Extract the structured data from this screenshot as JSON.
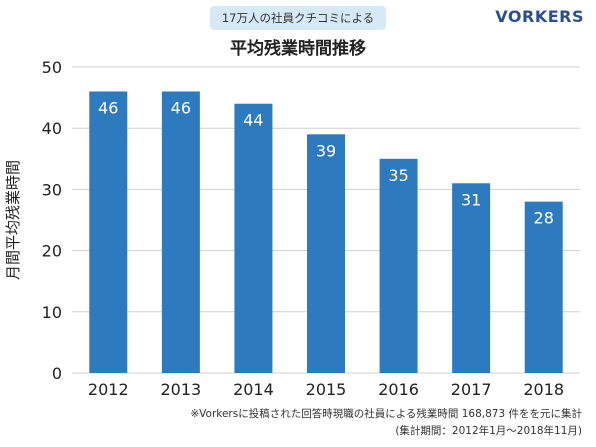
{
  "header": {
    "badge": "17万人の社員クチコミによる",
    "brand": "VORKERS",
    "title": "平均残業時間推移"
  },
  "footnote": {
    "line1": "※Vorkersに投稿された回答時現職の社員による残業時間 168,873 件をを元に集計",
    "line2": "(集計期間：2012年1月～2018年11月)"
  },
  "colors": {
    "bar": "#2e7abf",
    "bar_label": "#ffffff",
    "grid": "#d0d0d0",
    "badge_bg": "#d6e9f6",
    "brand": "#2a4f8c"
  },
  "chart_data": {
    "type": "bar",
    "title": "平均残業時間推移",
    "xlabel": "",
    "ylabel": "月間平均残業時間",
    "categories": [
      "2012",
      "2013",
      "2014",
      "2015",
      "2016",
      "2017",
      "2018"
    ],
    "values": [
      46,
      46,
      44,
      39,
      35,
      31,
      28
    ],
    "value_labels": [
      "46",
      "46",
      "44",
      "39",
      "35",
      "31",
      "28"
    ],
    "ylim": [
      0,
      50
    ],
    "yticks": [
      0,
      10,
      20,
      30,
      40,
      50
    ],
    "ytick_labels": [
      "0",
      "10",
      "20",
      "30",
      "40",
      "50"
    ],
    "grid": true,
    "legend": "none"
  }
}
